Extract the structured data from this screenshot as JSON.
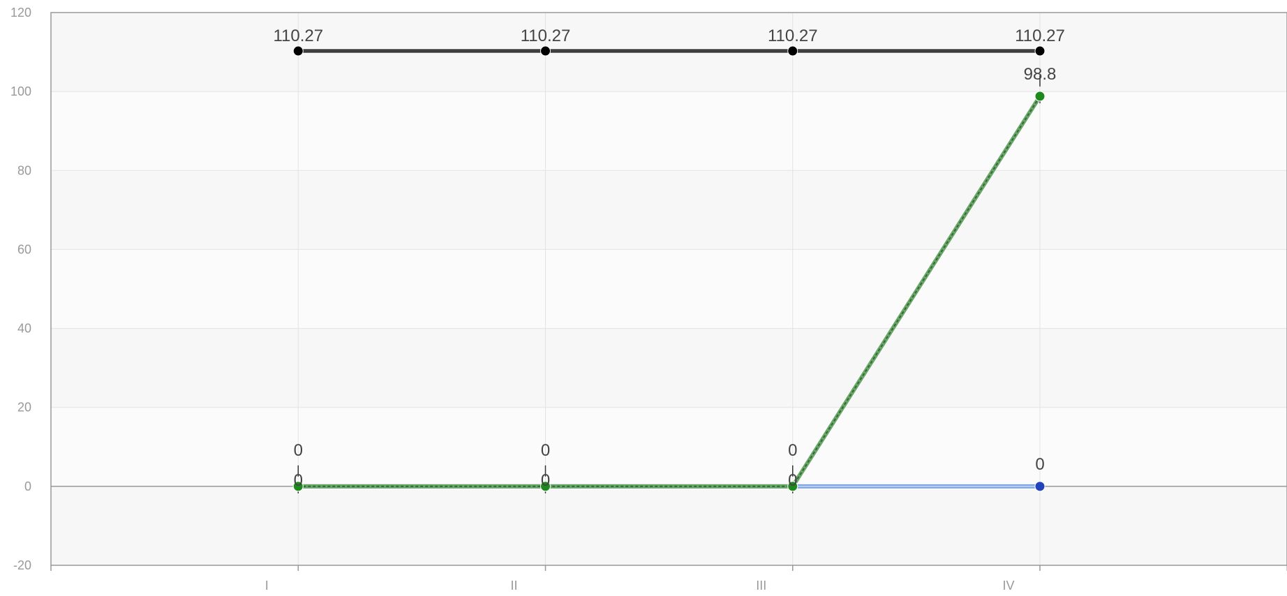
{
  "chart_data": {
    "type": "line",
    "title": "",
    "xlabel": "",
    "ylabel": "",
    "categories": [
      "I",
      "II",
      "III",
      "IV"
    ],
    "ylim": [
      -20,
      120
    ],
    "yticks": [
      -20,
      0,
      20,
      40,
      60,
      80,
      100,
      120
    ],
    "grid": true,
    "legend": "none",
    "series": [
      {
        "values": [
          110.27,
          110.27,
          110.27,
          110.27
        ],
        "labels": [
          "110.27",
          "110.27",
          "110.27",
          "110.27"
        ],
        "color": "#000000",
        "style": "solid"
      },
      {
        "values": [
          0,
          0,
          0,
          0
        ],
        "labels": [
          "0",
          "0",
          "0",
          "0"
        ],
        "color": "#2244bb",
        "line_color": "#7fa6e0",
        "style": "solid"
      },
      {
        "values": [
          0,
          0,
          0,
          98.8
        ],
        "labels": [
          "0",
          "0",
          "0",
          "98.8"
        ],
        "color": "#1e8a1e",
        "line_color": "#6aa56a",
        "style": "dashed"
      }
    ]
  }
}
